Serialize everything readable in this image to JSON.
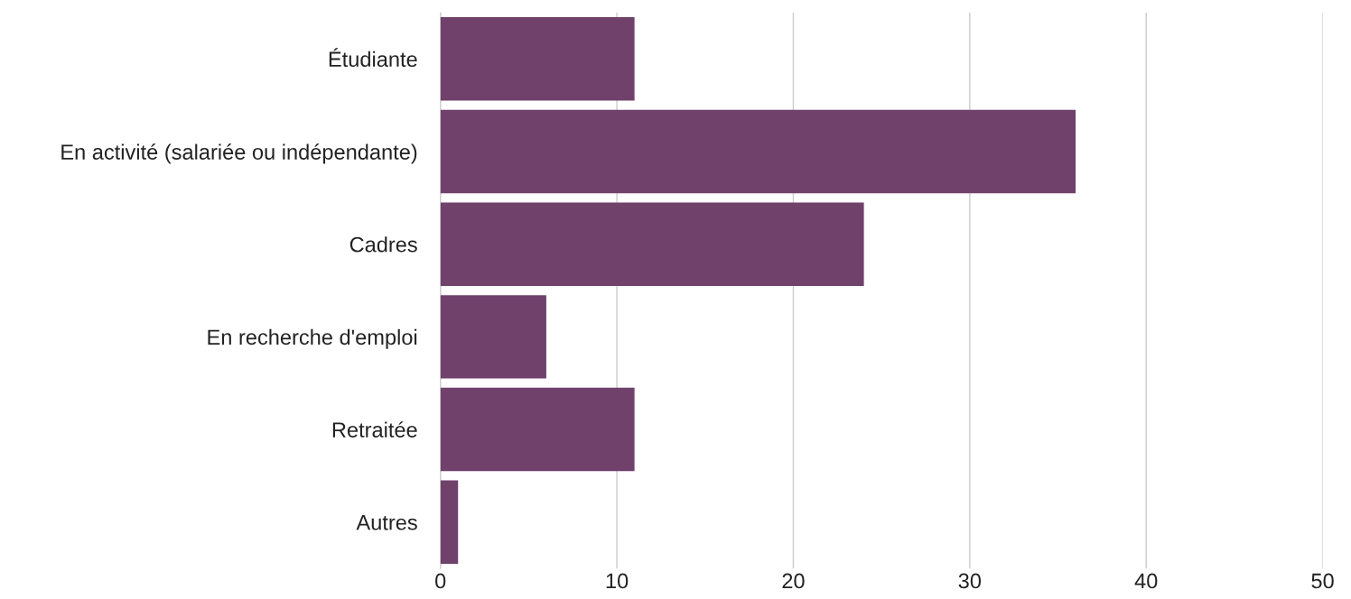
{
  "chart_data": {
    "type": "bar",
    "orientation": "horizontal",
    "categories": [
      "Étudiante",
      "En activité (salariée ou indépendante)",
      "Cadres",
      "En recherche d'emploi",
      "Retraitée",
      "Autres"
    ],
    "values": [
      11,
      36,
      24,
      6,
      11,
      1
    ],
    "color": "#6f416b",
    "xlim": [
      0,
      50
    ],
    "xticks": [
      0,
      10,
      20,
      30,
      40,
      50
    ],
    "grid": "x"
  }
}
